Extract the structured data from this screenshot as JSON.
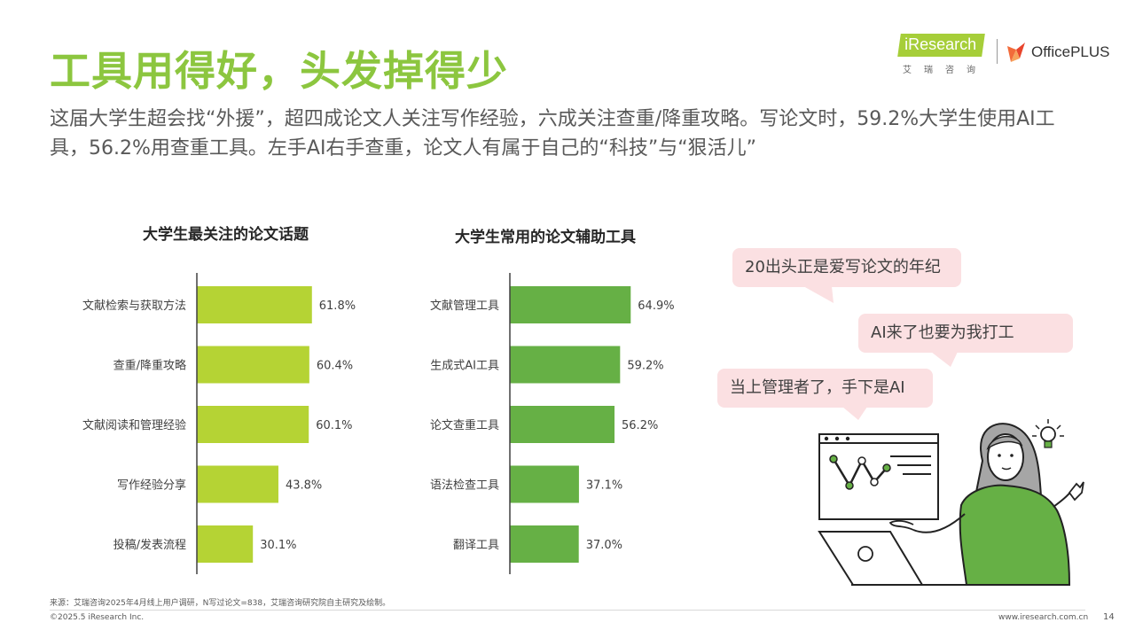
{
  "header": {
    "title": "工具用得好，头发掉得少",
    "subtitle": "这届大学生超会找“外援”，超四成论文人关注写作经验，六成关注查重/降重攻略。写论文时，59.2%大学生使用AI工具，56.2%用查重工具。左手AI右手查重，论文人有属于自己的“科技”与“狠活儿”"
  },
  "logos": {
    "iresearch_text": "iResearch",
    "iresearch_cn": "艾瑞咨询",
    "officeplus_text": "OfficePLUS"
  },
  "colors": {
    "title_green": "#8cc63f",
    "bar_left": "#b5d334",
    "bar_right": "#66b045",
    "bubble_bg": "#fbe0e2"
  },
  "chart_data": [
    {
      "type": "bar",
      "orientation": "horizontal",
      "title": "大学生最关注的论文话题",
      "categories": [
        "文献检索与获取方法",
        "查重/降重攻略",
        "文献阅读和管理经验",
        "写作经验分享",
        "投稿/发表流程"
      ],
      "values": [
        61.8,
        60.4,
        60.1,
        43.8,
        30.1
      ],
      "labels": [
        "61.8%",
        "60.4%",
        "60.1%",
        "43.8%",
        "30.1%"
      ],
      "unit": "%",
      "xlim": [
        0,
        100
      ],
      "grid": false
    },
    {
      "type": "bar",
      "orientation": "horizontal",
      "title": "大学生常用的论文辅助工具",
      "categories": [
        "文献管理工具",
        "生成式AI工具",
        "论文查重工具",
        "语法检查工具",
        "翻译工具"
      ],
      "values": [
        64.9,
        59.2,
        56.2,
        37.1,
        37.0
      ],
      "labels": [
        "64.9%",
        "59.2%",
        "56.2%",
        "37.1%",
        "37.0%"
      ],
      "unit": "%",
      "xlim": [
        0,
        100
      ],
      "grid": false
    }
  ],
  "bubbles": [
    "20出头正是爱写论文的年纪",
    "AI来了也要为我打工",
    "当上管理者了，手下是AI"
  ],
  "illustration": {
    "icons": [
      "laptop-icon",
      "line-chart-board-icon",
      "lightbulb-icon",
      "person-icon"
    ]
  },
  "footer": {
    "source": "来源：艾瑞咨询2025年4月线上用户调研，N写过论文=838，艾瑞咨询研究院自主研究及绘制。",
    "copyright": "©2025.5 iResearch Inc.",
    "website": "www.iresearch.com.cn",
    "page": "14"
  }
}
